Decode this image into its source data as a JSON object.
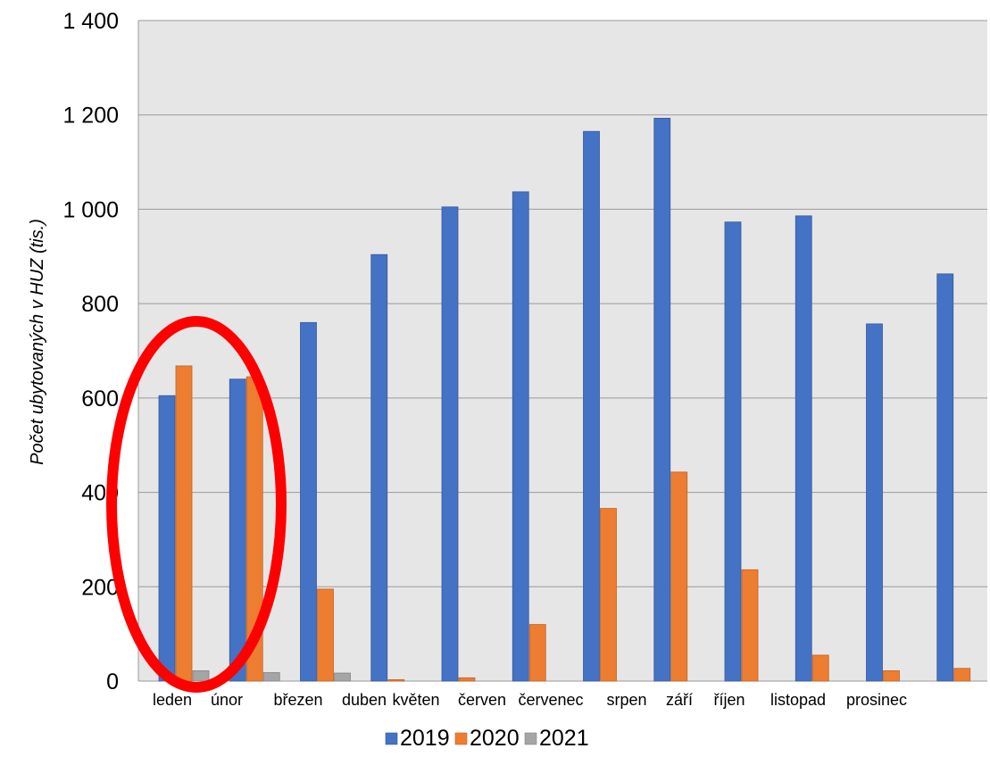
{
  "chart_data": {
    "type": "bar",
    "title": "",
    "xlabel": "",
    "ylabel": "Počet ubytovaných v HUZ (tis.)",
    "ylim": [
      0,
      1400
    ],
    "yticks": [
      0,
      200,
      400,
      600,
      800,
      1000,
      1200,
      1400
    ],
    "ytick_labels": [
      "0",
      "200",
      "400",
      "600",
      "800",
      "1 000",
      "1 200",
      "1 400"
    ],
    "grid": true,
    "legend_position": "bottom",
    "categories": [
      "leden",
      "únor",
      "březen",
      "duben",
      "květen",
      "červen",
      "červenec",
      "srpen",
      "září",
      "říjen",
      "listopad",
      "prosinec"
    ],
    "series": [
      {
        "name": "2019",
        "color": "#4472C4",
        "values": [
          605,
          640,
          760,
          904,
          1005,
          1037,
          1165,
          1193,
          973,
          986,
          757,
          863
        ]
      },
      {
        "name": "2020",
        "color": "#ED7D31",
        "values": [
          668,
          645,
          195,
          3,
          7,
          120,
          366,
          443,
          236,
          55,
          22,
          27
        ]
      },
      {
        "name": "2021",
        "color": "#A5A5A5",
        "values": [
          22,
          18,
          17,
          null,
          null,
          null,
          null,
          null,
          null,
          null,
          null,
          null
        ]
      }
    ]
  },
  "annotation": {
    "type": "ellipse-highlight",
    "color": "#FF0000",
    "highlighted_categories": [
      "leden",
      "únor"
    ]
  }
}
